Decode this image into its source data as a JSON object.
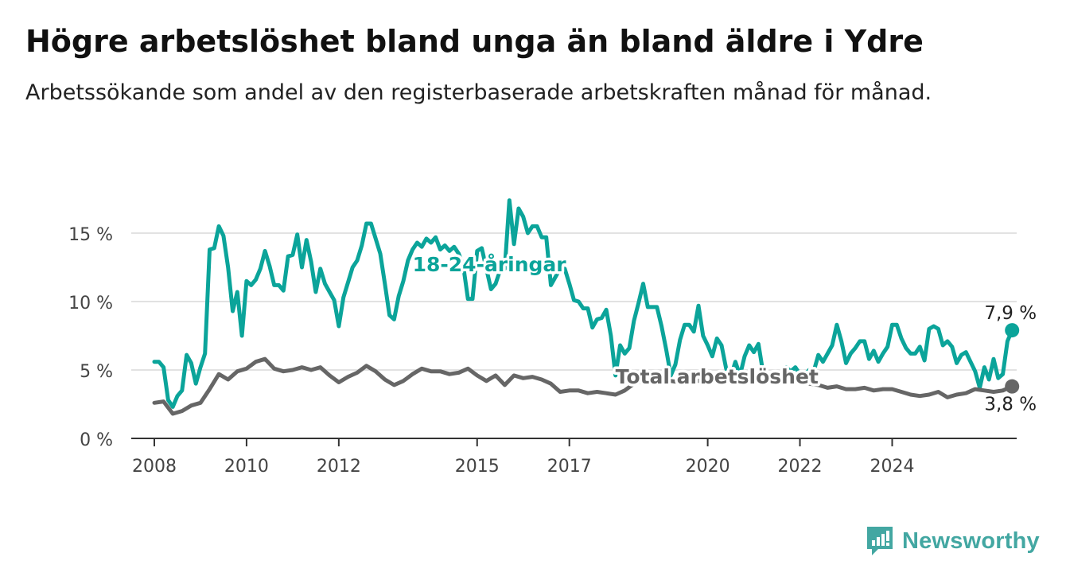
{
  "title": "Högre arbetslöshet bland unga än bland äldre i Ydre",
  "subtitle": "Arbetssökande som andel av den registerbaserade arbetskraften månad för månad.",
  "brand": {
    "name": "Newsworthy",
    "icon": "newsworthy-logo-icon",
    "color": "#43a7a2"
  },
  "chart_data": {
    "type": "line",
    "xlabel": "",
    "ylabel": "",
    "ylim": [
      0,
      17.5
    ],
    "xlim": [
      2007.5,
      2026.7
    ],
    "y_ticks": [
      0,
      5,
      10,
      15
    ],
    "y_tick_labels": [
      "0 %",
      "5 %",
      "10 %",
      "15 %"
    ],
    "x_ticks": [
      2008,
      2010,
      2012,
      2015,
      2017,
      2020,
      2022,
      2024
    ],
    "x_tick_labels": [
      "2008",
      "2010",
      "2012",
      "2015",
      "2017",
      "2020",
      "2022",
      "2024"
    ],
    "grid": true,
    "series": [
      {
        "name": "18-24-åringar",
        "color": "#0ba49a",
        "end_label": "7,9 %",
        "points": [
          [
            2008.0,
            5.6
          ],
          [
            2008.1,
            5.6
          ],
          [
            2008.2,
            5.2
          ],
          [
            2008.3,
            2.8
          ],
          [
            2008.4,
            2.3
          ],
          [
            2008.5,
            3.1
          ],
          [
            2008.6,
            3.5
          ],
          [
            2008.7,
            6.1
          ],
          [
            2008.8,
            5.5
          ],
          [
            2008.9,
            4.0
          ],
          [
            2009.0,
            5.2
          ],
          [
            2009.1,
            6.2
          ],
          [
            2009.2,
            13.8
          ],
          [
            2009.3,
            13.9
          ],
          [
            2009.4,
            15.5
          ],
          [
            2009.5,
            14.8
          ],
          [
            2009.6,
            12.5
          ],
          [
            2009.7,
            9.3
          ],
          [
            2009.8,
            10.7
          ],
          [
            2009.9,
            7.5
          ],
          [
            2010.0,
            11.5
          ],
          [
            2010.1,
            11.2
          ],
          [
            2010.2,
            11.6
          ],
          [
            2010.3,
            12.4
          ],
          [
            2010.4,
            13.7
          ],
          [
            2010.5,
            12.6
          ],
          [
            2010.6,
            11.2
          ],
          [
            2010.7,
            11.2
          ],
          [
            2010.8,
            10.8
          ],
          [
            2010.9,
            13.3
          ],
          [
            2011.0,
            13.4
          ],
          [
            2011.1,
            14.9
          ],
          [
            2011.2,
            12.5
          ],
          [
            2011.3,
            14.5
          ],
          [
            2011.4,
            12.9
          ],
          [
            2011.5,
            10.7
          ],
          [
            2011.6,
            12.4
          ],
          [
            2011.7,
            11.3
          ],
          [
            2011.8,
            10.7
          ],
          [
            2011.9,
            10.1
          ],
          [
            2012.0,
            8.2
          ],
          [
            2012.1,
            10.3
          ],
          [
            2012.2,
            11.4
          ],
          [
            2012.3,
            12.5
          ],
          [
            2012.4,
            13.0
          ],
          [
            2012.5,
            14.1
          ],
          [
            2012.6,
            15.7
          ],
          [
            2012.7,
            15.7
          ],
          [
            2012.8,
            14.6
          ],
          [
            2012.9,
            13.5
          ],
          [
            2013.0,
            11.3
          ],
          [
            2013.1,
            9.0
          ],
          [
            2013.2,
            8.7
          ],
          [
            2013.3,
            10.4
          ],
          [
            2013.4,
            11.5
          ],
          [
            2013.5,
            13.0
          ],
          [
            2013.6,
            13.8
          ],
          [
            2013.7,
            14.3
          ],
          [
            2013.8,
            14.0
          ],
          [
            2013.9,
            14.6
          ],
          [
            2014.0,
            14.3
          ],
          [
            2014.1,
            14.7
          ],
          [
            2014.2,
            13.8
          ],
          [
            2014.3,
            14.1
          ],
          [
            2014.4,
            13.7
          ],
          [
            2014.5,
            14.0
          ],
          [
            2014.6,
            13.5
          ],
          [
            2014.7,
            12.6
          ],
          [
            2014.8,
            10.2
          ],
          [
            2014.9,
            10.2
          ],
          [
            2015.0,
            13.7
          ],
          [
            2015.1,
            13.9
          ],
          [
            2015.2,
            12.4
          ],
          [
            2015.3,
            10.9
          ],
          [
            2015.4,
            11.3
          ],
          [
            2015.5,
            12.3
          ],
          [
            2015.6,
            12.4
          ],
          [
            2015.7,
            17.4
          ],
          [
            2015.8,
            14.2
          ],
          [
            2015.9,
            16.8
          ],
          [
            2016.0,
            16.2
          ],
          [
            2016.1,
            15.0
          ],
          [
            2016.2,
            15.5
          ],
          [
            2016.3,
            15.5
          ],
          [
            2016.4,
            14.7
          ],
          [
            2016.5,
            14.7
          ],
          [
            2016.6,
            11.2
          ],
          [
            2016.7,
            11.8
          ],
          [
            2016.8,
            12.4
          ],
          [
            2016.9,
            12.4
          ],
          [
            2017.0,
            11.3
          ],
          [
            2017.1,
            10.1
          ],
          [
            2017.2,
            10.0
          ],
          [
            2017.3,
            9.5
          ],
          [
            2017.4,
            9.5
          ],
          [
            2017.5,
            8.1
          ],
          [
            2017.6,
            8.7
          ],
          [
            2017.7,
            8.8
          ],
          [
            2017.8,
            9.4
          ],
          [
            2017.9,
            7.5
          ],
          [
            2018.0,
            4.6
          ],
          [
            2018.1,
            6.8
          ],
          [
            2018.2,
            6.2
          ],
          [
            2018.3,
            6.6
          ],
          [
            2018.4,
            8.6
          ],
          [
            2018.5,
            9.9
          ],
          [
            2018.6,
            11.3
          ],
          [
            2018.7,
            9.6
          ],
          [
            2018.8,
            9.6
          ],
          [
            2018.9,
            9.6
          ],
          [
            2019.0,
            8.2
          ],
          [
            2019.1,
            6.5
          ],
          [
            2019.2,
            4.6
          ],
          [
            2019.3,
            5.4
          ],
          [
            2019.4,
            7.2
          ],
          [
            2019.5,
            8.3
          ],
          [
            2019.6,
            8.3
          ],
          [
            2019.7,
            7.8
          ],
          [
            2019.8,
            9.7
          ],
          [
            2019.9,
            7.5
          ],
          [
            2020.0,
            6.8
          ],
          [
            2020.1,
            6.0
          ],
          [
            2020.2,
            7.3
          ],
          [
            2020.3,
            6.8
          ],
          [
            2020.4,
            5.1
          ],
          [
            2020.5,
            4.5
          ],
          [
            2020.6,
            5.6
          ],
          [
            2020.7,
            4.6
          ],
          [
            2020.8,
            6.0
          ],
          [
            2020.9,
            6.8
          ],
          [
            2021.0,
            6.3
          ],
          [
            2021.1,
            6.9
          ],
          [
            2021.2,
            4.8
          ],
          [
            2021.3,
            4.5
          ],
          [
            2021.4,
            4.6
          ],
          [
            2021.5,
            4.4
          ],
          [
            2021.6,
            4.2
          ],
          [
            2021.7,
            5.2
          ],
          [
            2021.8,
            4.9
          ],
          [
            2021.9,
            5.2
          ],
          [
            2022.0,
            4.7
          ],
          [
            2022.1,
            4.6
          ],
          [
            2022.2,
            5.0
          ],
          [
            2022.3,
            4.9
          ],
          [
            2022.4,
            6.1
          ],
          [
            2022.5,
            5.6
          ],
          [
            2022.6,
            6.2
          ],
          [
            2022.7,
            6.8
          ],
          [
            2022.8,
            8.3
          ],
          [
            2022.9,
            7.1
          ],
          [
            2023.0,
            5.5
          ],
          [
            2023.1,
            6.2
          ],
          [
            2023.2,
            6.6
          ],
          [
            2023.3,
            7.1
          ],
          [
            2023.4,
            7.1
          ],
          [
            2023.5,
            5.8
          ],
          [
            2023.6,
            6.4
          ],
          [
            2023.7,
            5.6
          ],
          [
            2023.8,
            6.2
          ],
          [
            2023.9,
            6.7
          ],
          [
            2024.0,
            8.3
          ],
          [
            2024.1,
            8.3
          ],
          [
            2024.2,
            7.3
          ],
          [
            2024.3,
            6.6
          ],
          [
            2024.4,
            6.2
          ],
          [
            2024.5,
            6.2
          ],
          [
            2024.6,
            6.7
          ],
          [
            2024.7,
            5.7
          ],
          [
            2024.8,
            8.0
          ],
          [
            2024.9,
            8.2
          ],
          [
            2025.0,
            8.0
          ],
          [
            2025.1,
            6.8
          ],
          [
            2025.2,
            7.1
          ],
          [
            2025.3,
            6.7
          ],
          [
            2025.4,
            5.5
          ],
          [
            2025.5,
            6.1
          ],
          [
            2025.6,
            6.3
          ],
          [
            2025.7,
            5.6
          ],
          [
            2025.8,
            4.9
          ],
          [
            2025.9,
            3.7
          ],
          [
            2026.0,
            5.2
          ],
          [
            2026.1,
            4.3
          ],
          [
            2026.2,
            5.8
          ],
          [
            2026.3,
            4.4
          ],
          [
            2026.4,
            4.7
          ],
          [
            2026.5,
            7.1
          ],
          [
            2026.6,
            7.9
          ]
        ]
      },
      {
        "name": "Total arbetslöshet",
        "color": "#666666",
        "end_label": "3,8 %",
        "points": [
          [
            2008.0,
            2.6
          ],
          [
            2008.2,
            2.7
          ],
          [
            2008.4,
            1.8
          ],
          [
            2008.6,
            2.0
          ],
          [
            2008.8,
            2.4
          ],
          [
            2009.0,
            2.6
          ],
          [
            2009.2,
            3.6
          ],
          [
            2009.4,
            4.7
          ],
          [
            2009.6,
            4.3
          ],
          [
            2009.8,
            4.9
          ],
          [
            2010.0,
            5.1
          ],
          [
            2010.2,
            5.6
          ],
          [
            2010.4,
            5.8
          ],
          [
            2010.6,
            5.1
          ],
          [
            2010.8,
            4.9
          ],
          [
            2011.0,
            5.0
          ],
          [
            2011.2,
            5.2
          ],
          [
            2011.4,
            5.0
          ],
          [
            2011.6,
            5.2
          ],
          [
            2011.8,
            4.6
          ],
          [
            2012.0,
            4.1
          ],
          [
            2012.2,
            4.5
          ],
          [
            2012.4,
            4.8
          ],
          [
            2012.6,
            5.3
          ],
          [
            2012.8,
            4.9
          ],
          [
            2013.0,
            4.3
          ],
          [
            2013.2,
            3.9
          ],
          [
            2013.4,
            4.2
          ],
          [
            2013.6,
            4.7
          ],
          [
            2013.8,
            5.1
          ],
          [
            2014.0,
            4.9
          ],
          [
            2014.2,
            4.9
          ],
          [
            2014.4,
            4.7
          ],
          [
            2014.6,
            4.8
          ],
          [
            2014.8,
            5.1
          ],
          [
            2015.0,
            4.6
          ],
          [
            2015.2,
            4.2
          ],
          [
            2015.4,
            4.6
          ],
          [
            2015.6,
            3.9
          ],
          [
            2015.8,
            4.6
          ],
          [
            2016.0,
            4.4
          ],
          [
            2016.2,
            4.5
          ],
          [
            2016.4,
            4.3
          ],
          [
            2016.6,
            4.0
          ],
          [
            2016.8,
            3.4
          ],
          [
            2017.0,
            3.5
          ],
          [
            2017.2,
            3.5
          ],
          [
            2017.4,
            3.3
          ],
          [
            2017.6,
            3.4
          ],
          [
            2017.8,
            3.3
          ],
          [
            2018.0,
            3.2
          ],
          [
            2018.2,
            3.5
          ],
          [
            2018.4,
            4.0
          ],
          [
            2018.6,
            4.2
          ],
          [
            2018.8,
            4.5
          ],
          [
            2019.0,
            4.4
          ],
          [
            2019.2,
            4.2
          ],
          [
            2019.4,
            4.1
          ],
          [
            2019.6,
            4.3
          ],
          [
            2019.8,
            4.2
          ],
          [
            2020.0,
            4.5
          ],
          [
            2020.2,
            4.6
          ],
          [
            2020.4,
            4.7
          ],
          [
            2020.6,
            4.8
          ],
          [
            2020.8,
            4.6
          ],
          [
            2021.0,
            4.4
          ],
          [
            2021.2,
            4.2
          ],
          [
            2021.4,
            4.4
          ],
          [
            2021.6,
            4.3
          ],
          [
            2021.8,
            4.1
          ],
          [
            2022.0,
            4.1
          ],
          [
            2022.2,
            4.0
          ],
          [
            2022.4,
            3.9
          ],
          [
            2022.6,
            3.7
          ],
          [
            2022.8,
            3.8
          ],
          [
            2023.0,
            3.6
          ],
          [
            2023.2,
            3.6
          ],
          [
            2023.4,
            3.7
          ],
          [
            2023.6,
            3.5
          ],
          [
            2023.8,
            3.6
          ],
          [
            2024.0,
            3.6
          ],
          [
            2024.2,
            3.4
          ],
          [
            2024.4,
            3.2
          ],
          [
            2024.6,
            3.1
          ],
          [
            2024.8,
            3.2
          ],
          [
            2025.0,
            3.4
          ],
          [
            2025.2,
            3.0
          ],
          [
            2025.4,
            3.2
          ],
          [
            2025.6,
            3.3
          ],
          [
            2025.8,
            3.6
          ],
          [
            2026.0,
            3.5
          ],
          [
            2026.2,
            3.4
          ],
          [
            2026.4,
            3.5
          ],
          [
            2026.6,
            3.8
          ]
        ]
      }
    ],
    "inline_labels": [
      {
        "series": 0,
        "text": "18-24-åringar"
      },
      {
        "series": 1,
        "text": "Total arbetslöshet"
      }
    ]
  }
}
